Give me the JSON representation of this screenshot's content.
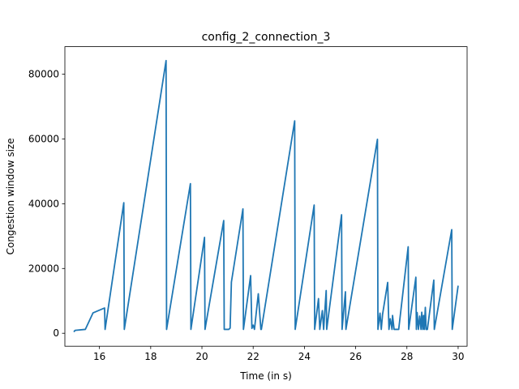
{
  "chart_data": {
    "type": "line",
    "title": "config_2_connection_3",
    "xlabel": "Time (in s)",
    "ylabel": "Congestion window size",
    "xlim": [
      14.65,
      30.35
    ],
    "ylim": [
      -4000,
      88500
    ],
    "xticks": [
      16,
      18,
      20,
      22,
      24,
      26,
      28,
      30
    ],
    "yticks": [
      0,
      20000,
      40000,
      60000,
      80000
    ],
    "grid": false,
    "colors": {
      "line": "#1f77b4"
    },
    "series": [
      {
        "name": "",
        "x": [
          15.0,
          15.05,
          15.45,
          15.75,
          16.2,
          16.22,
          16.95,
          16.97,
          18.6,
          18.62,
          19.55,
          19.57,
          20.1,
          20.12,
          20.85,
          20.87,
          21.05,
          21.1,
          21.15,
          21.6,
          21.62,
          21.9,
          21.95,
          22.0,
          22.05,
          22.2,
          22.3,
          22.32,
          23.62,
          23.64,
          24.38,
          24.4,
          24.55,
          24.6,
          24.7,
          24.75,
          24.85,
          24.87,
          25.45,
          25.47,
          25.6,
          25.62,
          26.85,
          26.87,
          26.95,
          27.0,
          27.05,
          27.25,
          27.3,
          27.35,
          27.42,
          27.44,
          27.5,
          27.55,
          27.6,
          27.65,
          27.68,
          28.05,
          28.07,
          28.35,
          28.37,
          28.4,
          28.45,
          28.5,
          28.55,
          28.58,
          28.62,
          28.65,
          28.68,
          28.72,
          28.75,
          28.8,
          29.05,
          29.07,
          29.75,
          29.77,
          30.0
        ],
        "y": [
          400,
          900,
          1200,
          6300,
          7800,
          1200,
          40300,
          1200,
          84200,
          1200,
          46200,
          1200,
          29600,
          1200,
          34800,
          1200,
          1200,
          1600,
          15800,
          38400,
          1200,
          17800,
          1500,
          2500,
          1200,
          12200,
          1200,
          1200,
          65600,
          1200,
          39600,
          1200,
          10700,
          1200,
          7000,
          1200,
          13200,
          1200,
          36600,
          1200,
          12800,
          1200,
          59900,
          1200,
          6200,
          1200,
          5800,
          15700,
          1200,
          4500,
          1200,
          5500,
          1200,
          1200,
          1200,
          1200,
          1200,
          26700,
          1200,
          17300,
          1200,
          6400,
          1200,
          5300,
          1200,
          6500,
          1200,
          5500,
          1200,
          8000,
          1200,
          1200,
          16400,
          1200,
          32000,
          1200,
          14700
        ]
      }
    ]
  }
}
